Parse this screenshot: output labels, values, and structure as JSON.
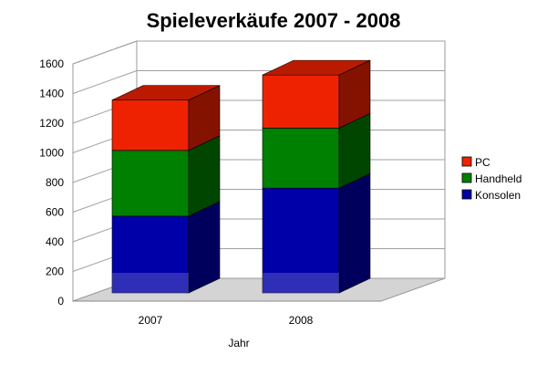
{
  "chart_data": {
    "type": "bar",
    "stacked": true,
    "three_d": true,
    "title": "Spieleverkäufe 2007 - 2008",
    "xlabel": "Jahr",
    "ylabel": "",
    "categories": [
      "2007",
      "2008"
    ],
    "ylim": [
      0,
      1600
    ],
    "yticks": [
      0,
      200,
      400,
      600,
      800,
      1000,
      1200,
      1400,
      1600
    ],
    "grid": true,
    "legend_position": "right",
    "series": [
      {
        "name": "Konsolen",
        "values": [
          550,
          750
        ],
        "color": "#0000a8"
      },
      {
        "name": "Handheld",
        "values": [
          470,
          430
        ],
        "color": "#008000"
      },
      {
        "name": "PC",
        "values": [
          360,
          380
        ],
        "color": "#ee2200"
      }
    ],
    "legend_order": [
      "PC",
      "Handheld",
      "Konsolen"
    ]
  }
}
